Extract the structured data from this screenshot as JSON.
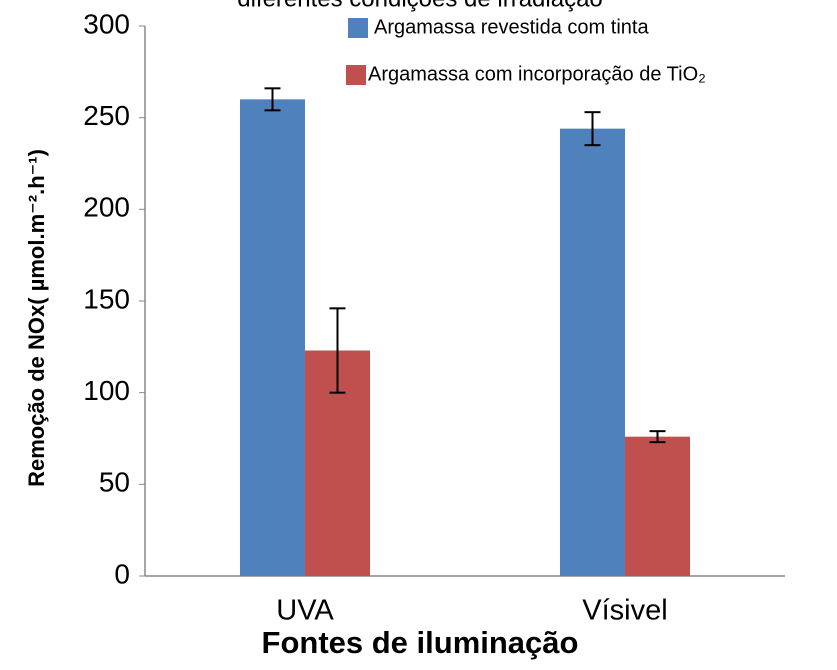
{
  "chart_data": {
    "type": "bar",
    "title": "diferentes condições de irradiação",
    "xlabel": "Fontes de iluminação",
    "ylabel": "Remoção de NOx( µmol.m⁻².h⁻¹)",
    "categories": [
      "UVA",
      "Vísivel"
    ],
    "series": [
      {
        "name": "Argamassa revestida com tinta",
        "color": "#4f81bd",
        "values": [
          260,
          244
        ],
        "errors": [
          6,
          9
        ]
      },
      {
        "name": "Argamassa com incorporação de TiO₂",
        "color": "#c0504d",
        "values": [
          123,
          76
        ],
        "errors": [
          23,
          3
        ]
      }
    ],
    "ylim": [
      0,
      300
    ],
    "yticks": [
      0,
      50,
      100,
      150,
      200,
      250,
      300
    ],
    "grid": false
  }
}
